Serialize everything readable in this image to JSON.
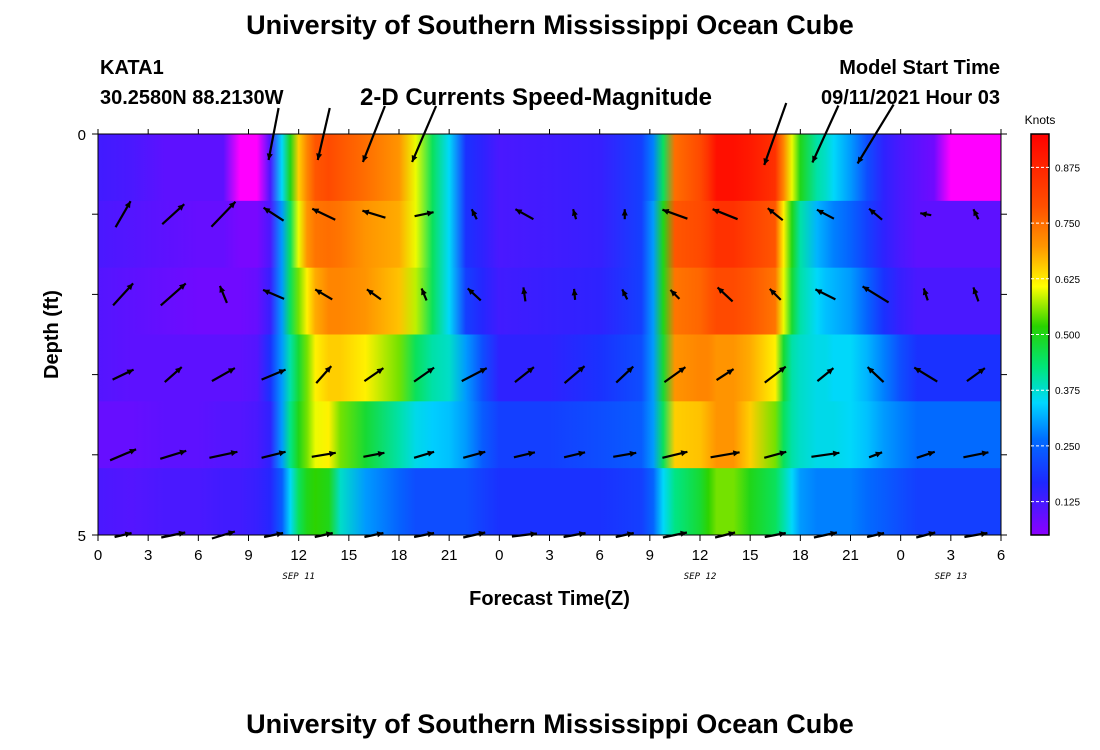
{
  "header": {
    "title": "University of Southern Mississippi Ocean Cube",
    "station_id": "KATA1",
    "station_coords": "30.2580N  88.2130W",
    "chart_title": "2-D Currents Speed-Magnitude",
    "model_start_label": "Model Start Time",
    "model_start_value": "09/11/2021 Hour 03"
  },
  "footer": {
    "title": "University of Southern Mississippi Ocean Cube"
  },
  "chart_data": {
    "type": "heatmap",
    "title": "2-D Currents Speed-Magnitude",
    "xlabel": "Forecast Time(Z)",
    "ylabel": "Depth (ft)",
    "x_hours": [
      0,
      3,
      6,
      9,
      12,
      15,
      18,
      21,
      24,
      27,
      30,
      33,
      36,
      39,
      42,
      45,
      48,
      51,
      54
    ],
    "x_tick_labels": [
      "0",
      "3",
      "6",
      "9",
      "12",
      "15",
      "18",
      "21",
      "0",
      "3",
      "6",
      "9",
      "12",
      "15",
      "18",
      "21",
      "0",
      "3",
      "6"
    ],
    "date_labels": [
      {
        "label": "SEP 11",
        "hour": 12
      },
      {
        "label": "SEP 12",
        "hour": 36
      },
      {
        "label": "SEP 13",
        "hour": 51
      }
    ],
    "y_tick_labels": [
      "0",
      "5"
    ],
    "ylim": [
      0,
      5
    ],
    "xlim": [
      0,
      54
    ],
    "depths": [
      0,
      1,
      2,
      3,
      4,
      5
    ],
    "colorbar": {
      "unit": "Knots",
      "ticks": [
        "0.875",
        "0.750",
        "0.625",
        "0.500",
        "0.375",
        "0.250",
        "0.125"
      ],
      "tick_values": [
        0.875,
        0.75,
        0.625,
        0.5,
        0.375,
        0.25,
        0.125
      ],
      "range": [
        0.05,
        0.95
      ]
    },
    "speed_profile": {
      "hours": [
        0,
        2,
        4,
        6,
        7.5,
        8.5,
        9.5,
        10.3,
        11,
        11.5,
        12,
        12.5,
        13,
        13.8,
        14.5,
        16,
        18,
        19,
        20,
        21,
        22,
        23,
        24,
        27,
        30,
        32.5,
        33.2,
        33.8,
        34.5,
        36,
        36.5,
        37,
        38,
        39,
        40.5,
        41,
        41.5,
        42,
        43,
        43.5,
        44,
        45,
        46,
        47,
        48,
        49,
        50,
        51,
        52,
        54
      ],
      "rows": [
        [
          0.13,
          0.12,
          0.1,
          0.1,
          0.1,
          0.05,
          0.05,
          0.12,
          0.35,
          0.5,
          0.65,
          0.72,
          0.78,
          0.8,
          0.78,
          0.75,
          0.7,
          0.6,
          0.45,
          0.35,
          0.18,
          0.15,
          0.12,
          0.13,
          0.14,
          0.2,
          0.28,
          0.45,
          0.75,
          0.8,
          0.85,
          0.92,
          0.92,
          0.9,
          0.85,
          0.72,
          0.6,
          0.5,
          0.4,
          0.38,
          0.35,
          0.3,
          0.22,
          0.15,
          0.12,
          0.1,
          0.08,
          0.05,
          0.05,
          0.05
        ],
        [
          0.12,
          0.11,
          0.1,
          0.09,
          0.09,
          0.07,
          0.07,
          0.12,
          0.3,
          0.45,
          0.6,
          0.7,
          0.74,
          0.75,
          0.74,
          0.7,
          0.68,
          0.6,
          0.45,
          0.35,
          0.18,
          0.15,
          0.12,
          0.13,
          0.14,
          0.2,
          0.3,
          0.5,
          0.78,
          0.8,
          0.82,
          0.85,
          0.85,
          0.82,
          0.78,
          0.62,
          0.5,
          0.4,
          0.32,
          0.3,
          0.28,
          0.25,
          0.2,
          0.15,
          0.12,
          0.1,
          0.1,
          0.1,
          0.1,
          0.1
        ],
        [
          0.11,
          0.1,
          0.09,
          0.08,
          0.08,
          0.08,
          0.09,
          0.14,
          0.3,
          0.45,
          0.55,
          0.62,
          0.68,
          0.72,
          0.72,
          0.7,
          0.66,
          0.58,
          0.45,
          0.35,
          0.2,
          0.16,
          0.13,
          0.14,
          0.15,
          0.2,
          0.3,
          0.5,
          0.74,
          0.76,
          0.78,
          0.8,
          0.8,
          0.78,
          0.74,
          0.6,
          0.48,
          0.4,
          0.35,
          0.33,
          0.32,
          0.3,
          0.25,
          0.18,
          0.14,
          0.12,
          0.12,
          0.12,
          0.12,
          0.12
        ],
        [
          0.11,
          0.1,
          0.1,
          0.1,
          0.1,
          0.1,
          0.11,
          0.18,
          0.3,
          0.4,
          0.48,
          0.55,
          0.62,
          0.65,
          0.65,
          0.62,
          0.55,
          0.45,
          0.4,
          0.38,
          0.3,
          0.22,
          0.15,
          0.15,
          0.18,
          0.22,
          0.3,
          0.48,
          0.7,
          0.72,
          0.72,
          0.7,
          0.7,
          0.68,
          0.62,
          0.48,
          0.4,
          0.38,
          0.36,
          0.36,
          0.35,
          0.35,
          0.32,
          0.28,
          0.22,
          0.18,
          0.18,
          0.18,
          0.18,
          0.18
        ],
        [
          0.09,
          0.09,
          0.1,
          0.1,
          0.11,
          0.11,
          0.12,
          0.15,
          0.3,
          0.42,
          0.5,
          0.55,
          0.6,
          0.62,
          0.55,
          0.48,
          0.4,
          0.36,
          0.34,
          0.33,
          0.3,
          0.24,
          0.2,
          0.2,
          0.22,
          0.24,
          0.3,
          0.45,
          0.65,
          0.66,
          0.68,
          0.7,
          0.7,
          0.65,
          0.55,
          0.45,
          0.4,
          0.38,
          0.36,
          0.36,
          0.36,
          0.35,
          0.33,
          0.3,
          0.28,
          0.26,
          0.26,
          0.26,
          0.26,
          0.26
        ],
        [
          0.12,
          0.11,
          0.12,
          0.12,
          0.13,
          0.13,
          0.14,
          0.16,
          0.24,
          0.35,
          0.45,
          0.5,
          0.52,
          0.5,
          0.38,
          0.3,
          0.25,
          0.22,
          0.22,
          0.22,
          0.22,
          0.2,
          0.18,
          0.18,
          0.18,
          0.2,
          0.25,
          0.35,
          0.42,
          0.48,
          0.52,
          0.55,
          0.55,
          0.5,
          0.45,
          0.4,
          0.35,
          0.3,
          0.28,
          0.28,
          0.28,
          0.28,
          0.26,
          0.24,
          0.22,
          0.2,
          0.2,
          0.2,
          0.2,
          0.2
        ]
      ]
    },
    "vector_hours": [
      1.5,
      4.5,
      7.5,
      10.5,
      13.5,
      16.5,
      19.5,
      22.5,
      25.5,
      28.5,
      31.5,
      34.5,
      37.5,
      40.5,
      43.5,
      46.5,
      49.5,
      52.5
    ],
    "vectors": [
      [
        null,
        null,
        null,
        [
          -10,
          52
        ],
        [
          -12,
          52
        ],
        [
          -22,
          56
        ],
        [
          -24,
          56
        ],
        null,
        null,
        null,
        null,
        null,
        null,
        [
          -22,
          62
        ],
        [
          -26,
          57
        ],
        [
          -36,
          59
        ],
        null,
        null
      ],
      [
        [
          15,
          -26
        ],
        [
          22,
          -20
        ],
        [
          24,
          -25
        ],
        [
          -20,
          -13
        ],
        [
          -23,
          -11
        ],
        [
          -23,
          -7
        ],
        [
          19,
          -4
        ],
        [
          -5,
          -10
        ],
        [
          -18,
          -10
        ],
        [
          -3,
          -10
        ],
        [
          0,
          -10
        ],
        [
          -25,
          -9
        ],
        [
          -25,
          -10
        ],
        [
          -15,
          -12
        ],
        [
          -17,
          -9
        ],
        [
          -13,
          -11
        ],
        [
          -11,
          -2
        ],
        [
          -5,
          -10
        ]
      ],
      [
        [
          20,
          -22
        ],
        [
          25,
          -22
        ],
        [
          -7,
          -17
        ],
        [
          -21,
          -9
        ],
        [
          -17,
          -10
        ],
        [
          -14,
          -10
        ],
        [
          -5,
          -12
        ],
        [
          -13,
          -12
        ],
        [
          -2,
          -14
        ],
        [
          -1,
          -11
        ],
        [
          -5,
          -10
        ],
        [
          -9,
          -9
        ],
        [
          -15,
          -14
        ],
        [
          -11,
          -11
        ],
        [
          -20,
          -10
        ],
        [
          -26,
          -16
        ],
        [
          -4,
          -12
        ],
        [
          -5,
          -14
        ]
      ],
      [
        [
          21,
          -10
        ],
        [
          17,
          -15
        ],
        [
          23,
          -13
        ],
        [
          24,
          -10
        ],
        [
          15,
          -17
        ],
        [
          19,
          -13
        ],
        [
          20,
          -14
        ],
        [
          25,
          -13
        ],
        [
          19,
          -15
        ],
        [
          20,
          -17
        ],
        [
          17,
          -16
        ],
        [
          21,
          -15
        ],
        [
          17,
          -11
        ],
        [
          21,
          -16
        ],
        [
          16,
          -13
        ],
        [
          -16,
          -15
        ],
        [
          -23,
          -14
        ],
        [
          18,
          -13
        ]
      ],
      [
        [
          26,
          -11
        ],
        [
          26,
          -8
        ],
        [
          28,
          -6
        ],
        [
          24,
          -6
        ],
        [
          24,
          -4
        ],
        [
          21,
          -4
        ],
        [
          20,
          -6
        ],
        [
          22,
          -6
        ],
        [
          21,
          -5
        ],
        [
          21,
          -5
        ],
        [
          23,
          -4
        ],
        [
          25,
          -6
        ],
        [
          29,
          -5
        ],
        [
          22,
          -6
        ],
        [
          28,
          -4
        ],
        [
          13,
          -5
        ],
        [
          18,
          -6
        ],
        [
          25,
          -5
        ]
      ],
      [
        [
          17,
          -4
        ],
        [
          24,
          -5
        ],
        [
          23,
          -7
        ],
        [
          19,
          -4
        ],
        [
          18,
          -4
        ],
        [
          19,
          -4
        ],
        [
          20,
          -4
        ],
        [
          22,
          -5
        ],
        [
          25,
          -3
        ],
        [
          22,
          -4
        ],
        [
          18,
          -4
        ],
        [
          24,
          -5
        ],
        [
          20,
          -5
        ],
        [
          21,
          -4
        ],
        [
          23,
          -5
        ],
        [
          17,
          -4
        ],
        [
          19,
          -5
        ],
        [
          23,
          -4
        ]
      ]
    ]
  }
}
